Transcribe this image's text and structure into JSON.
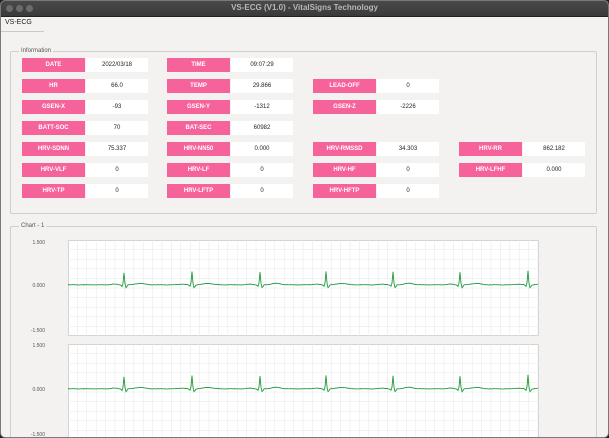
{
  "window": {
    "title": "VS-ECG (V1.0) - VitalSigns Technology"
  },
  "menu": {
    "item": "VS-ECG"
  },
  "info": {
    "title": "Information",
    "fields": [
      {
        "key": "date",
        "label": "DATE",
        "value": "2022/03/18"
      },
      {
        "key": "time",
        "label": "TIME",
        "value": "09:07:29"
      },
      {
        "key": "hr",
        "label": "HR",
        "value": "66.0"
      },
      {
        "key": "temp",
        "label": "TEMP",
        "value": "29.866"
      },
      {
        "key": "lead-off",
        "label": "LEAD-OFF",
        "value": "0"
      },
      {
        "key": "gsen-x",
        "label": "GSEN-X",
        "value": "-93"
      },
      {
        "key": "gsen-y",
        "label": "GSEN-Y",
        "value": "-1312"
      },
      {
        "key": "gsen-z",
        "label": "GSEN-Z",
        "value": "-2226"
      },
      {
        "key": "batt-soc",
        "label": "BATT-SOC",
        "value": "70"
      },
      {
        "key": "bat-sec",
        "label": "BAT-SEC",
        "value": "60982"
      },
      {
        "key": "hrv-sdnn",
        "label": "HRV-SDNN",
        "value": "75.337"
      },
      {
        "key": "hrv-nn50",
        "label": "HRV-NN50",
        "value": "0.000"
      },
      {
        "key": "hrv-rmssd",
        "label": "HRV-RMSSD",
        "value": "34.303"
      },
      {
        "key": "hrv-rr",
        "label": "HRV-RR",
        "value": "862.182"
      },
      {
        "key": "hrv-vlf",
        "label": "HRV-VLF",
        "value": "0"
      },
      {
        "key": "hrv-lf",
        "label": "HRV-LF",
        "value": "0"
      },
      {
        "key": "hrv-hf",
        "label": "HRV-HF",
        "value": "0"
      },
      {
        "key": "hrv-lfhf",
        "label": "HRV-LFHF",
        "value": "0.000"
      },
      {
        "key": "hrv-tp",
        "label": "HRV-TP",
        "value": "0"
      },
      {
        "key": "hrv-lftp",
        "label": "HRV-LFTP",
        "value": "0"
      },
      {
        "key": "hrv-hftp",
        "label": "HRV-HFTP",
        "value": "0"
      }
    ]
  },
  "chart_section": {
    "title": "Chart - 1"
  },
  "colors": {
    "label_bg": "#f6639a",
    "trace": "#1f9a3c",
    "grid": "#e6e6e6"
  },
  "chart_data": [
    {
      "type": "line",
      "title": "",
      "xlabel": "",
      "ylabel": "",
      "ylim": [
        -1.5,
        1.5
      ],
      "yticks": [
        "1.500",
        "0.000",
        "-1.500"
      ],
      "grid": true,
      "r_peak_times": [
        56,
        124,
        192,
        258,
        325,
        392,
        460
      ],
      "r_peak_heights": [
        0.38,
        0.42,
        0.4,
        0.43,
        0.41,
        0.4,
        0.44
      ],
      "baseline": 0.1,
      "series": [
        {
          "values": []
        }
      ]
    },
    {
      "type": "line",
      "title": "",
      "xlabel": "",
      "ylabel": "",
      "ylim": [
        -1.5,
        1.5
      ],
      "yticks": [
        "1.500",
        "0.000",
        "-1.500"
      ],
      "grid": true,
      "r_peak_times": [
        56,
        124,
        192,
        258,
        325,
        392,
        460
      ],
      "r_peak_heights": [
        0.38,
        0.42,
        0.4,
        0.43,
        0.41,
        0.4,
        0.44
      ],
      "baseline": 0.1,
      "series": [
        {
          "values": []
        }
      ]
    }
  ]
}
